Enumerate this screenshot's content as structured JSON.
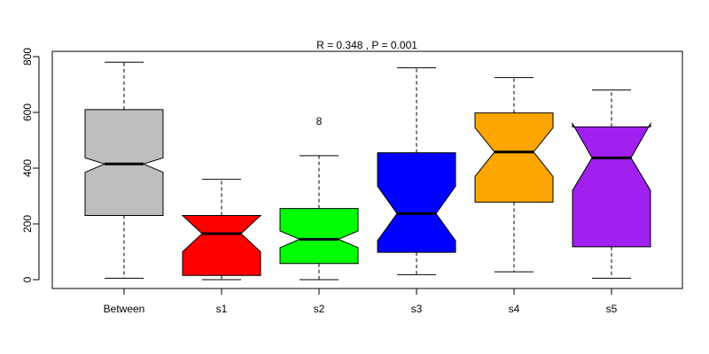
{
  "chart_data": {
    "type": "boxplot",
    "notched": true,
    "title": "R =  0.348 ,  P =  0.001",
    "xlabel": "",
    "ylabel": "",
    "ylim": [
      -30,
      800
    ],
    "yticks": [
      0,
      200,
      400,
      600,
      800
    ],
    "yticklabels": [
      "0",
      "200",
      "400",
      "600",
      "800"
    ],
    "grid": false,
    "groups": [
      {
        "name": "Between",
        "color": "#bebebe",
        "min": 5,
        "q1": 230,
        "median": 415,
        "q3": 610,
        "max": 780,
        "notch_low": 385,
        "notch_high": 437,
        "outliers": []
      },
      {
        "name": "s1",
        "color": "#ff0000",
        "min": 0,
        "q1": 15,
        "median": 165,
        "q3": 230,
        "max": 360,
        "notch_low": 100,
        "notch_high": 230,
        "outliers": []
      },
      {
        "name": "s2",
        "color": "#00ff00",
        "min": 0,
        "q1": 58,
        "median": 145,
        "q3": 255,
        "max": 445,
        "notch_low": 115,
        "notch_high": 175,
        "outliers": []
      },
      {
        "name": "s3",
        "color": "#0000ff",
        "min": 18,
        "q1": 98,
        "median": 237,
        "q3": 455,
        "max": 760,
        "notch_low": 140,
        "notch_high": 335,
        "outliers": []
      },
      {
        "name": "s4",
        "color": "#ffa500",
        "min": 28,
        "q1": 278,
        "median": 458,
        "q3": 598,
        "max": 725,
        "notch_low": 370,
        "notch_high": 545,
        "outliers": []
      },
      {
        "name": "s5",
        "color": "#a020f0",
        "min": 5,
        "q1": 118,
        "median": 437,
        "q3": 548,
        "max": 680,
        "notch_low": 320,
        "notch_high": 560,
        "outliers": []
      }
    ],
    "annotations": [
      {
        "text": "8",
        "group": "s2",
        "y": 568
      }
    ]
  }
}
